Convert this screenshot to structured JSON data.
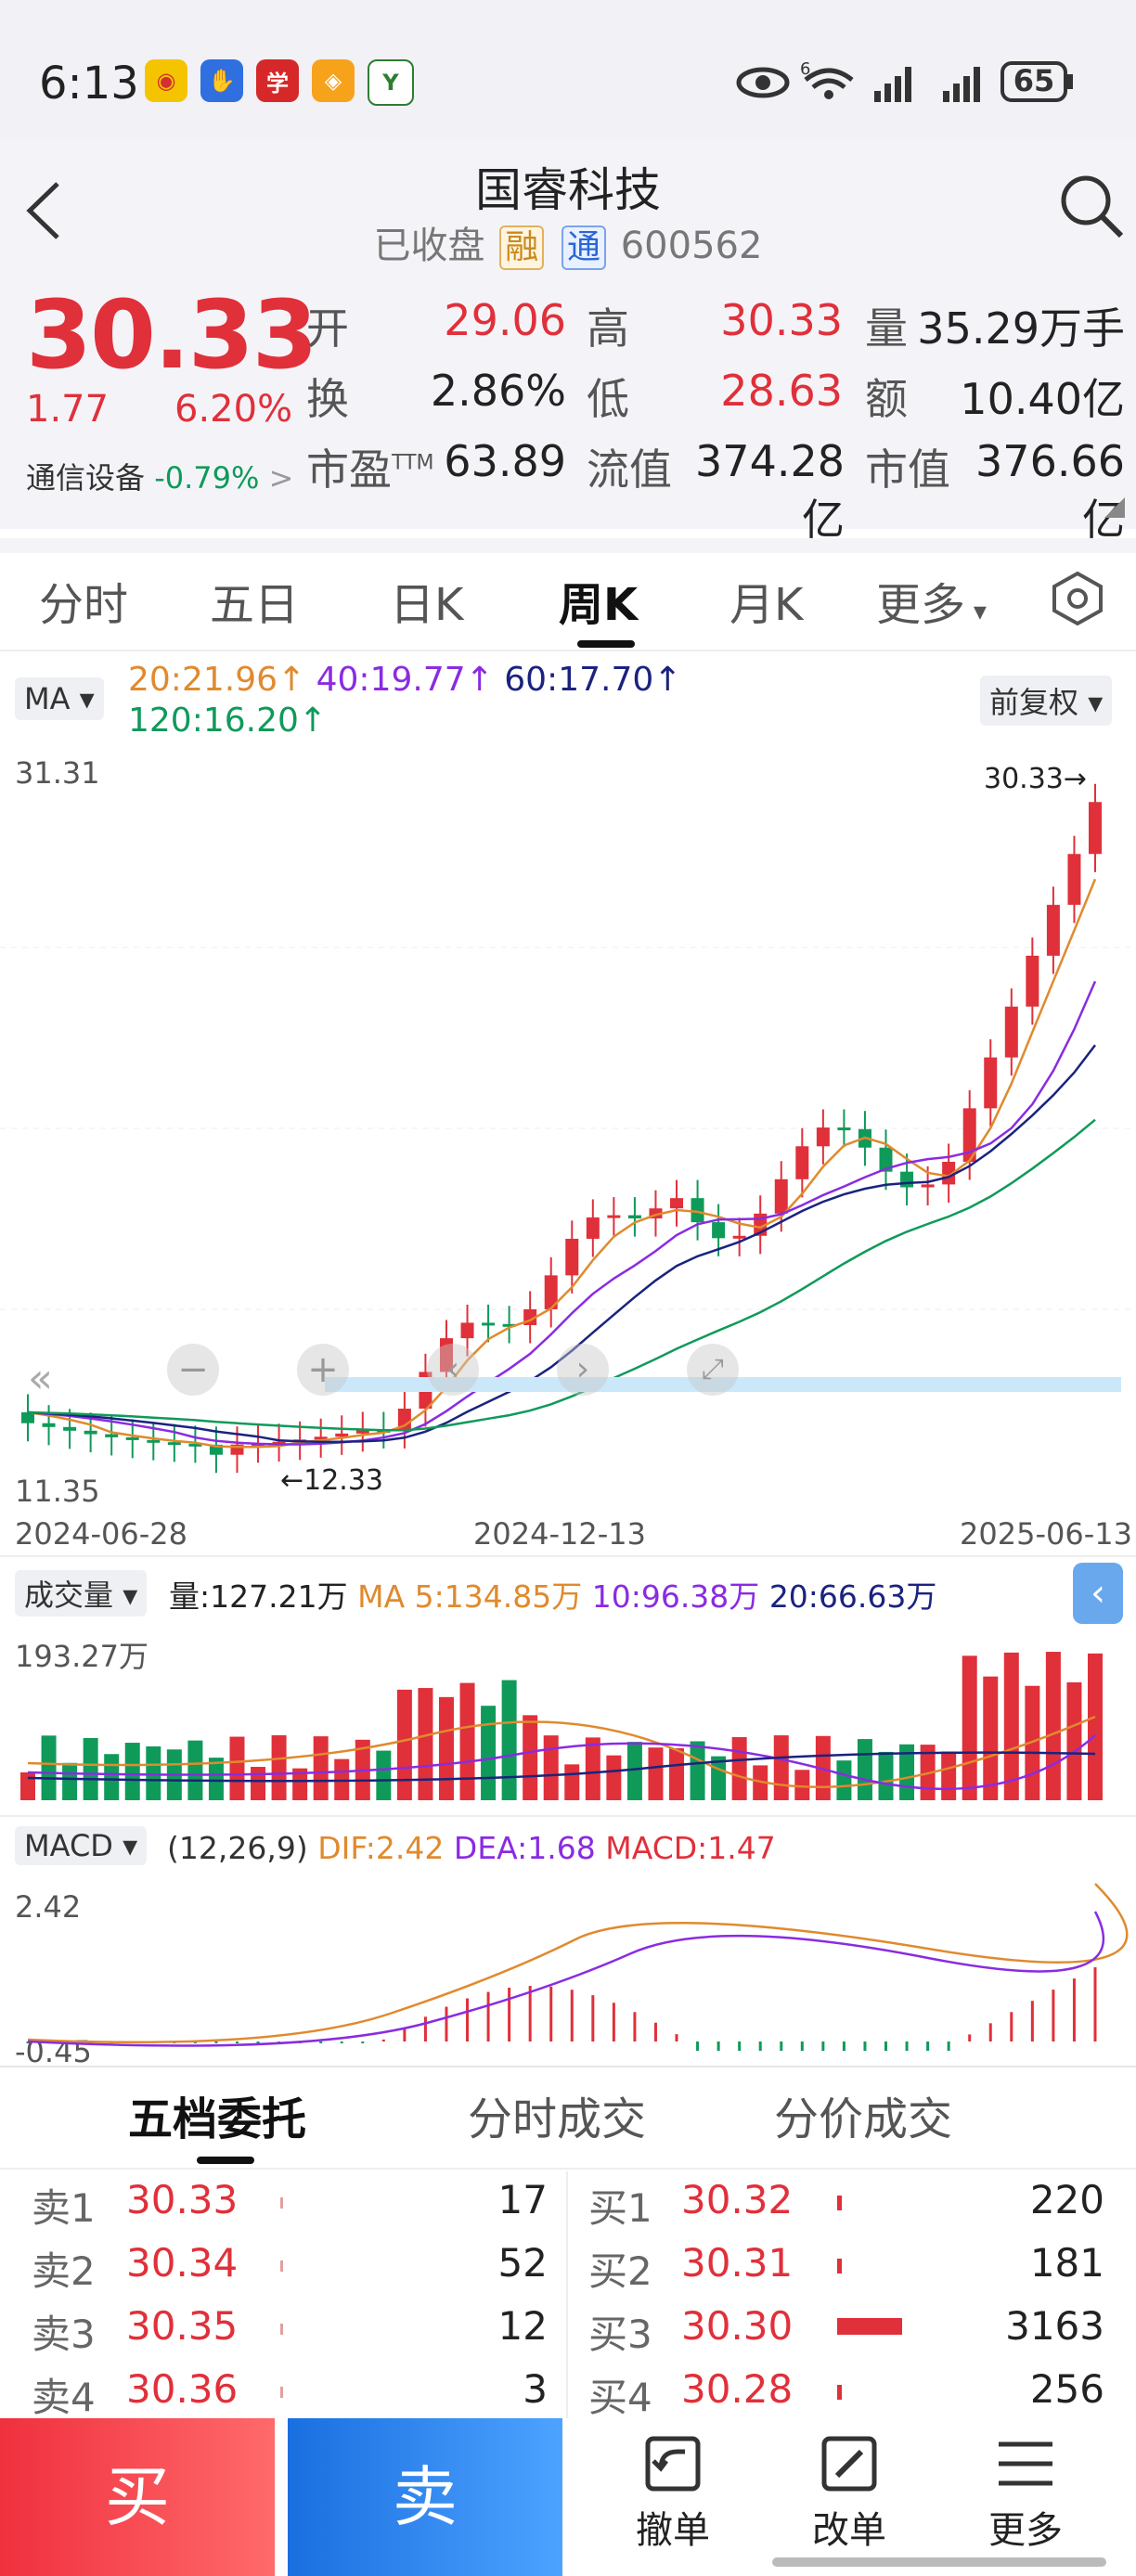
{
  "status": {
    "time": "6:13",
    "battery": "65",
    "net_sup": "6"
  },
  "header": {
    "title": "国睿科技",
    "status": "已收盘",
    "tag1": "融",
    "tag2": "通",
    "code": "600562"
  },
  "quote": {
    "price": "30.33",
    "change": "1.77",
    "change_pct": "6.20%",
    "sector": "通信设备",
    "sector_pct": "-0.79%",
    "sector_arrow": ">",
    "fields": [
      {
        "label": "开",
        "value": "29.06"
      },
      {
        "label": "高",
        "value": "30.33"
      },
      {
        "label": "量",
        "value": "35.29万手"
      },
      {
        "label": "换",
        "value": "2.86%"
      },
      {
        "label": "低",
        "value": "28.63"
      },
      {
        "label": "额",
        "value": "10.40亿"
      },
      {
        "label": "市盈",
        "sup": "TTM",
        "value": "63.89"
      },
      {
        "label": "流值",
        "value": "374.28亿"
      },
      {
        "label": "市值",
        "value": "376.66亿"
      }
    ]
  },
  "tabs": [
    "分时",
    "五日",
    "日K",
    "周K",
    "月K",
    "更多"
  ],
  "chart": {
    "ma_button": "MA",
    "ma_items": [
      {
        "text": "20:21.96↑",
        "color": "#e08a2e"
      },
      {
        "text": "40:19.77↑",
        "color": "#8a2be2"
      },
      {
        "text": "60:17.70↑",
        "color": "#1a237e"
      },
      {
        "text": "120:16.20↑",
        "color": "#0f9a5a"
      }
    ],
    "adjust_button": "前复权",
    "y_max_label": "31.31",
    "y_min_label": "11.35",
    "high_label": "30.33→",
    "low_label": "←12.33",
    "dates": [
      "2024-06-28",
      "2024-12-13",
      "2025-06-13"
    ],
    "vol_button": "成交量",
    "vol_info": [
      {
        "text": "量:127.21万",
        "color": "#222"
      },
      {
        "text": "MA 5:134.85万",
        "color": "#e08a2e"
      },
      {
        "text": "10:96.38万",
        "color": "#8a2be2"
      },
      {
        "text": "20:66.63万",
        "color": "#1a237e"
      }
    ],
    "vol_max_label": "193.27万",
    "macd_button": "MACD",
    "macd_params": "(12,26,9)",
    "macd_info": [
      {
        "text": "DIF:2.42",
        "color": "#e08a2e"
      },
      {
        "text": "DEA:1.68",
        "color": "#8a2be2"
      },
      {
        "text": "MACD:1.47",
        "color": "#e0303a"
      }
    ],
    "macd_max_label": "2.42",
    "macd_min_label": "-0.45"
  },
  "chart_data": {
    "type": "candlestick",
    "period": "weekly",
    "ylim": [
      11.35,
      31.31
    ],
    "x_start": "2024-06-28",
    "x_mid": "2024-12-13",
    "x_end": "2025-06-13",
    "low": 12.33,
    "high": 30.33
  },
  "orderbook": {
    "tabs": [
      "五档委托",
      "分时成交",
      "分价成交"
    ],
    "asks": [
      {
        "label": "卖1",
        "price": "30.33",
        "qty": "17"
      },
      {
        "label": "卖2",
        "price": "30.34",
        "qty": "52"
      },
      {
        "label": "卖3",
        "price": "30.35",
        "qty": "12"
      },
      {
        "label": "卖4",
        "price": "30.36",
        "qty": "3"
      }
    ],
    "bids": [
      {
        "label": "买1",
        "price": "30.32",
        "qty": "220"
      },
      {
        "label": "买2",
        "price": "30.31",
        "qty": "181"
      },
      {
        "label": "买3",
        "price": "30.30",
        "qty": "3163"
      },
      {
        "label": "买4",
        "price": "30.28",
        "qty": "256"
      }
    ]
  },
  "actions": {
    "buy": "买",
    "sell": "卖",
    "cancel": "撤单",
    "edit": "改单",
    "more": "更多"
  }
}
